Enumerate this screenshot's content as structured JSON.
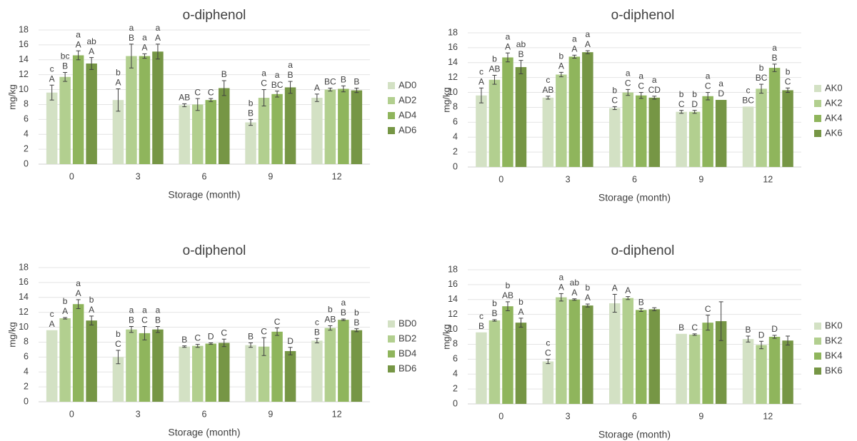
{
  "chart_data": [
    {
      "type": "bar",
      "title": "o-diphenol",
      "xlabel": "Storage (month)",
      "ylabel": "mg/kg",
      "ylim": [
        0,
        18
      ],
      "yticks": [
        0,
        2,
        4,
        6,
        8,
        10,
        12,
        14,
        16,
        18
      ],
      "grid": true,
      "legend_position": "right",
      "categories": [
        "0",
        "3",
        "6",
        "9",
        "12"
      ],
      "series": [
        {
          "name": "AD0",
          "color": "#d3e1c4",
          "values": [
            9.6,
            8.6,
            7.9,
            5.6,
            8.9
          ],
          "errors": [
            1.0,
            1.5,
            0.2,
            0.4,
            0.5
          ],
          "upper": [
            "c",
            "b",
            "",
            "b",
            ""
          ],
          "lower": [
            "A",
            "A",
            "AB",
            "B",
            "A"
          ]
        },
        {
          "name": "AD2",
          "color": "#b2cf8f",
          "values": [
            11.7,
            14.5,
            8.0,
            8.9,
            10.0
          ],
          "errors": [
            0.6,
            1.6,
            0.8,
            1.1,
            0.2
          ],
          "upper": [
            "bc",
            "a",
            "",
            "a",
            ""
          ],
          "lower": [
            "B",
            "B",
            "C",
            "C",
            "BC"
          ]
        },
        {
          "name": "AD4",
          "color": "#8fb55c",
          "values": [
            14.6,
            14.5,
            8.6,
            9.4,
            10.1
          ],
          "errors": [
            0.6,
            0.3,
            0.2,
            0.4,
            0.4
          ],
          "upper": [
            "a",
            "a",
            "",
            "a",
            ""
          ],
          "lower": [
            "A",
            "A",
            "C",
            "BC",
            "B"
          ]
        },
        {
          "name": "AD6",
          "color": "#769645",
          "values": [
            13.5,
            15.1,
            10.2,
            10.3,
            9.9
          ],
          "errors": [
            0.8,
            1.0,
            1.0,
            0.8,
            0.3
          ],
          "upper": [
            "ab",
            "a",
            "",
            "a",
            ""
          ],
          "lower": [
            "A",
            "A",
            "B",
            "B",
            "B"
          ]
        }
      ]
    },
    {
      "type": "bar",
      "title": "o-diphenol",
      "xlabel": "Storage (month)",
      "ylabel": "mg/kg",
      "ylim": [
        0,
        18
      ],
      "yticks": [
        0,
        2,
        4,
        6,
        8,
        10,
        12,
        14,
        16,
        18
      ],
      "grid": true,
      "legend_position": "right",
      "categories": [
        "0",
        "3",
        "6",
        "9",
        "12"
      ],
      "series": [
        {
          "name": "AK0",
          "color": "#d3e1c4",
          "values": [
            9.6,
            9.3,
            7.9,
            7.4,
            8.1
          ],
          "errors": [
            1.0,
            0.2,
            0.2,
            0.2,
            0.05
          ],
          "upper": [
            "c",
            "c",
            "b",
            "b",
            "c"
          ],
          "lower": [
            "A",
            "AB",
            "C",
            "C",
            "BC"
          ]
        },
        {
          "name": "AK2",
          "color": "#b2cf8f",
          "values": [
            11.7,
            12.4,
            10.0,
            7.4,
            10.5
          ],
          "errors": [
            0.6,
            0.3,
            0.4,
            0.2,
            0.6
          ],
          "upper": [
            "b",
            "b",
            "a",
            "b",
            "b"
          ],
          "lower": [
            "AB",
            "A",
            "C",
            "D",
            "BC"
          ]
        },
        {
          "name": "AK4",
          "color": "#8fb55c",
          "values": [
            14.7,
            14.8,
            9.6,
            9.5,
            13.3
          ],
          "errors": [
            0.6,
            0.2,
            0.4,
            0.5,
            0.5
          ],
          "upper": [
            "a",
            "a",
            "a",
            "a",
            "a"
          ],
          "lower": [
            "A",
            "A",
            "C",
            "C",
            "B"
          ]
        },
        {
          "name": "AK6",
          "color": "#769645",
          "values": [
            13.4,
            15.4,
            9.3,
            9.0,
            10.3
          ],
          "errors": [
            0.9,
            0.2,
            0.2,
            0.05,
            0.3
          ],
          "upper": [
            "ab",
            "a",
            "a",
            "a",
            "b"
          ],
          "lower": [
            "B",
            "A",
            "CD",
            "D",
            "C"
          ]
        }
      ]
    },
    {
      "type": "bar",
      "title": "o-diphenol",
      "xlabel": "Storage (month)",
      "ylabel": "mg/kg",
      "ylim": [
        0,
        18
      ],
      "yticks": [
        0,
        2,
        4,
        6,
        8,
        10,
        12,
        14,
        16,
        18
      ],
      "grid": true,
      "legend_position": "right",
      "categories": [
        "0",
        "3",
        "6",
        "9",
        "12"
      ],
      "series": [
        {
          "name": "BD0",
          "color": "#d3e1c4",
          "values": [
            9.6,
            6.0,
            7.4,
            7.6,
            8.2
          ],
          "errors": [
            0.05,
            0.9,
            0.1,
            0.3,
            0.3
          ],
          "upper": [
            "c",
            "b",
            "",
            "",
            "c"
          ],
          "lower": [
            "A",
            "C",
            "B",
            "B",
            "B"
          ]
        },
        {
          "name": "BD2",
          "color": "#b2cf8f",
          "values": [
            11.2,
            9.7,
            7.5,
            7.4,
            9.9
          ],
          "errors": [
            0.1,
            0.4,
            0.2,
            1.2,
            0.3
          ],
          "upper": [
            "b",
            "a",
            "",
            "",
            "b"
          ],
          "lower": [
            "A",
            "B",
            "C",
            "C",
            "AB"
          ]
        },
        {
          "name": "BD4",
          "color": "#8fb55c",
          "values": [
            13.1,
            9.2,
            7.8,
            9.4,
            11.0
          ],
          "errors": [
            0.6,
            0.9,
            0.1,
            0.5,
            0.1
          ],
          "upper": [
            "a",
            "a",
            "",
            "",
            "a"
          ],
          "lower": [
            "A",
            "C",
            "D",
            "C",
            "B"
          ]
        },
        {
          "name": "BD6",
          "color": "#769645",
          "values": [
            10.9,
            9.7,
            7.9,
            6.8,
            9.6
          ],
          "errors": [
            0.6,
            0.4,
            0.5,
            0.5,
            0.2
          ],
          "upper": [
            "b",
            "a",
            "",
            "",
            "b"
          ],
          "lower": [
            "A",
            "B",
            "C",
            "D",
            "B"
          ]
        }
      ]
    },
    {
      "type": "bar",
      "title": "o-diphenol",
      "xlabel": "Storage (month)",
      "ylabel": "mg/kg",
      "ylim": [
        0,
        18
      ],
      "yticks": [
        0,
        2,
        4,
        6,
        8,
        10,
        12,
        14,
        16,
        18
      ],
      "grid": true,
      "legend_position": "right",
      "categories": [
        "0",
        "3",
        "6",
        "9",
        "12"
      ],
      "series": [
        {
          "name": "BK0",
          "color": "#d3e1c4",
          "values": [
            9.6,
            5.7,
            13.5,
            9.4,
            8.7
          ],
          "errors": [
            0.05,
            0.3,
            1.2,
            0.05,
            0.4
          ],
          "upper": [
            "c",
            "c",
            "",
            "",
            ""
          ],
          "lower": [
            "B",
            "C",
            "A",
            "B",
            "B"
          ]
        },
        {
          "name": "BK2",
          "color": "#b2cf8f",
          "values": [
            11.2,
            14.3,
            14.2,
            9.3,
            7.9
          ],
          "errors": [
            0.1,
            0.5,
            0.2,
            0.1,
            0.5
          ],
          "upper": [
            "b",
            "a",
            "",
            "",
            ""
          ],
          "lower": [
            "B",
            "A",
            "A",
            "C",
            "D"
          ]
        },
        {
          "name": "BK4",
          "color": "#8fb55c",
          "values": [
            13.1,
            14.0,
            12.6,
            10.9,
            9.0
          ],
          "errors": [
            0.6,
            0.1,
            0.2,
            1.0,
            0.2
          ],
          "upper": [
            "b",
            "ab",
            "",
            "",
            ""
          ],
          "lower": [
            "AB",
            "A",
            "B",
            "C",
            "D"
          ]
        },
        {
          "name": "BK6",
          "color": "#769645",
          "values": [
            10.9,
            13.2,
            12.7,
            11.1,
            8.5
          ],
          "errors": [
            0.6,
            0.2,
            0.2,
            2.6,
            0.6
          ],
          "upper": [
            "b",
            "b",
            "",
            "",
            ""
          ],
          "lower": [
            "A",
            "A",
            "",
            "",
            ""
          ]
        }
      ]
    }
  ]
}
